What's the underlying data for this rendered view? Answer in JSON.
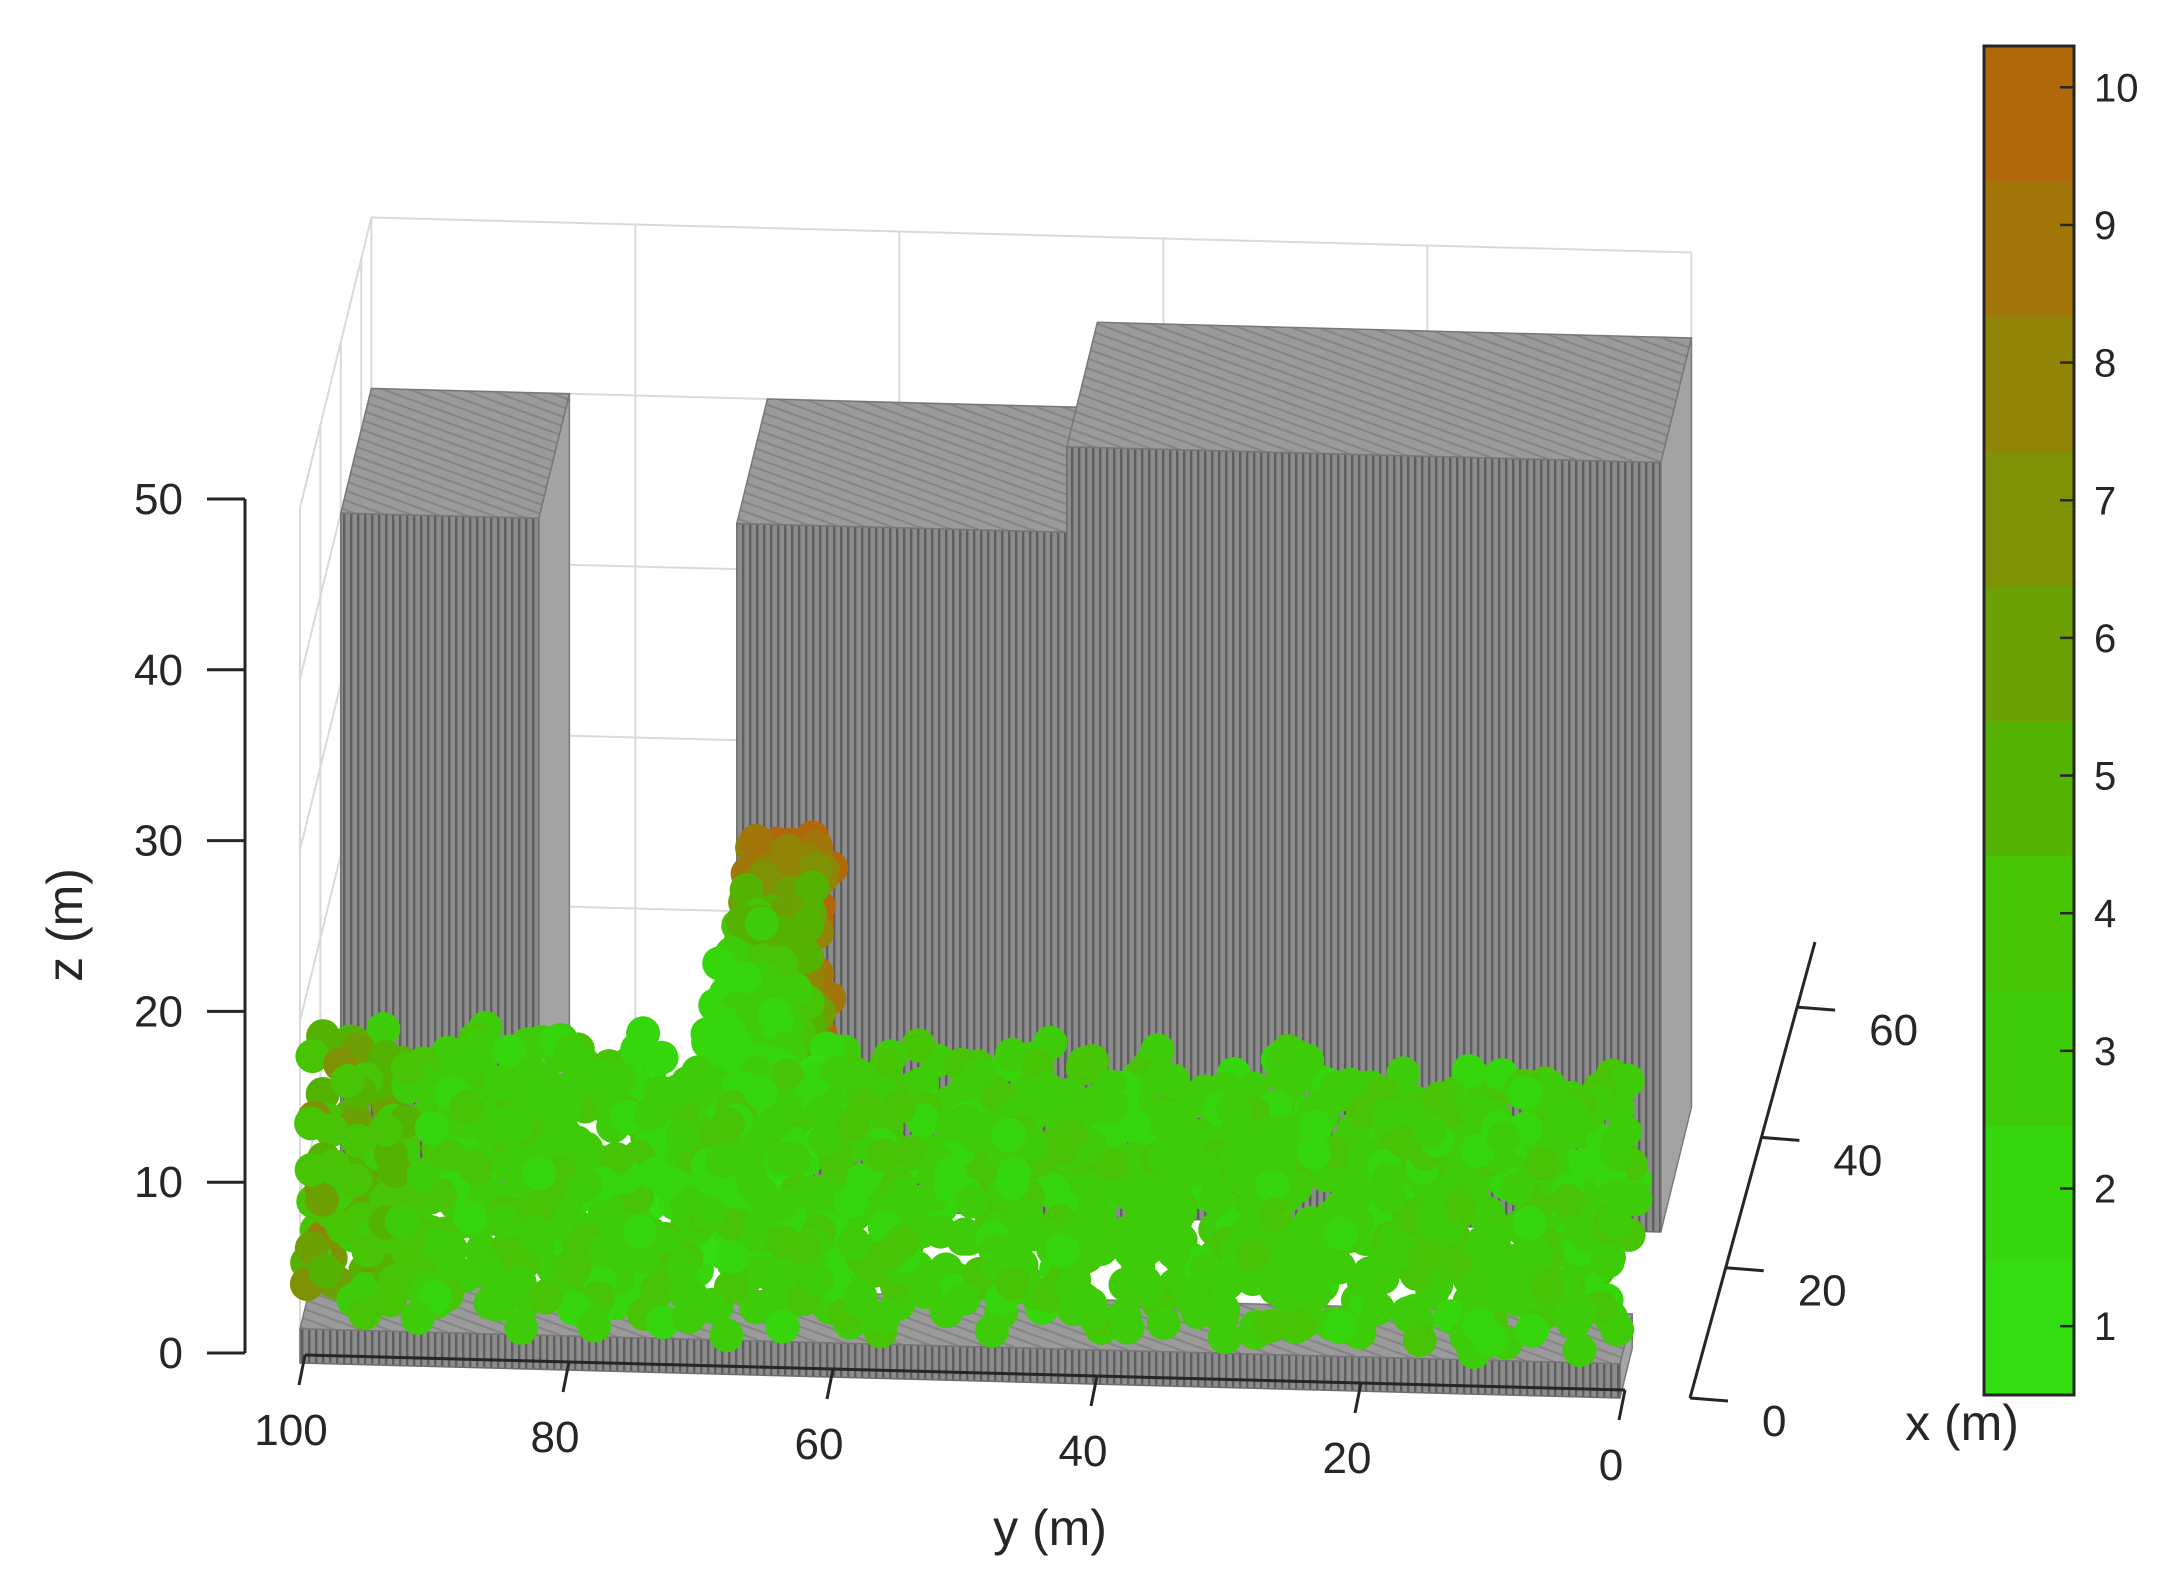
{
  "chart_data": {
    "type": "scatter",
    "subtype": "3d-scatter-with-building-blocks",
    "xlabel": "x (m)",
    "ylabel": "y (m)",
    "zlabel": "z (m)",
    "xlim": [
      0,
      70
    ],
    "ylim": [
      0,
      100
    ],
    "zlim": [
      0,
      50
    ],
    "x_ticks": [
      "0",
      "20",
      "40",
      "60"
    ],
    "y_ticks": [
      "100",
      "80",
      "60",
      "40",
      "20",
      "0"
    ],
    "z_ticks": [
      "0",
      "10",
      "20",
      "30",
      "40",
      "50"
    ],
    "grid": true,
    "colorbar": {
      "position": "right",
      "range": [
        0.5,
        10.3
      ],
      "ticks": [
        "1",
        "2",
        "3",
        "4",
        "5",
        "6",
        "7",
        "8",
        "9",
        "10"
      ],
      "colors": [
        "#33dd11",
        "#36d60d",
        "#3ecc0a",
        "#47c404",
        "#54b203",
        "#6da005",
        "#7f9205",
        "#928407",
        "#a3760a",
        "#b1680a"
      ]
    },
    "buildings": [
      {
        "name": "building-1",
        "y_range": [
          85,
          100
        ],
        "x_range": [
          40,
          70
        ],
        "z_top": 40
      },
      {
        "name": "building-2",
        "y_range": [
          45,
          70
        ],
        "x_range": [
          40,
          70
        ],
        "z_top": 40
      },
      {
        "name": "building-3",
        "y_range": [
          0,
          45
        ],
        "x_range": [
          40,
          70
        ],
        "z_top": 45
      }
    ],
    "ground_strip": {
      "y_range": [
        0,
        100
      ],
      "x_range": [
        0,
        12
      ],
      "z_top": 2
    },
    "point_clusters": [
      {
        "name": "main-corridor",
        "y_range": [
          0,
          100
        ],
        "x_range": [
          0,
          18
        ],
        "z_range": [
          2,
          16
        ],
        "value_range": [
          1,
          9
        ]
      },
      {
        "name": "branch-corridor",
        "y_center": 68,
        "x_range": [
          18,
          70
        ],
        "z_range": [
          2,
          16
        ],
        "value_range": [
          1,
          10
        ]
      }
    ]
  }
}
